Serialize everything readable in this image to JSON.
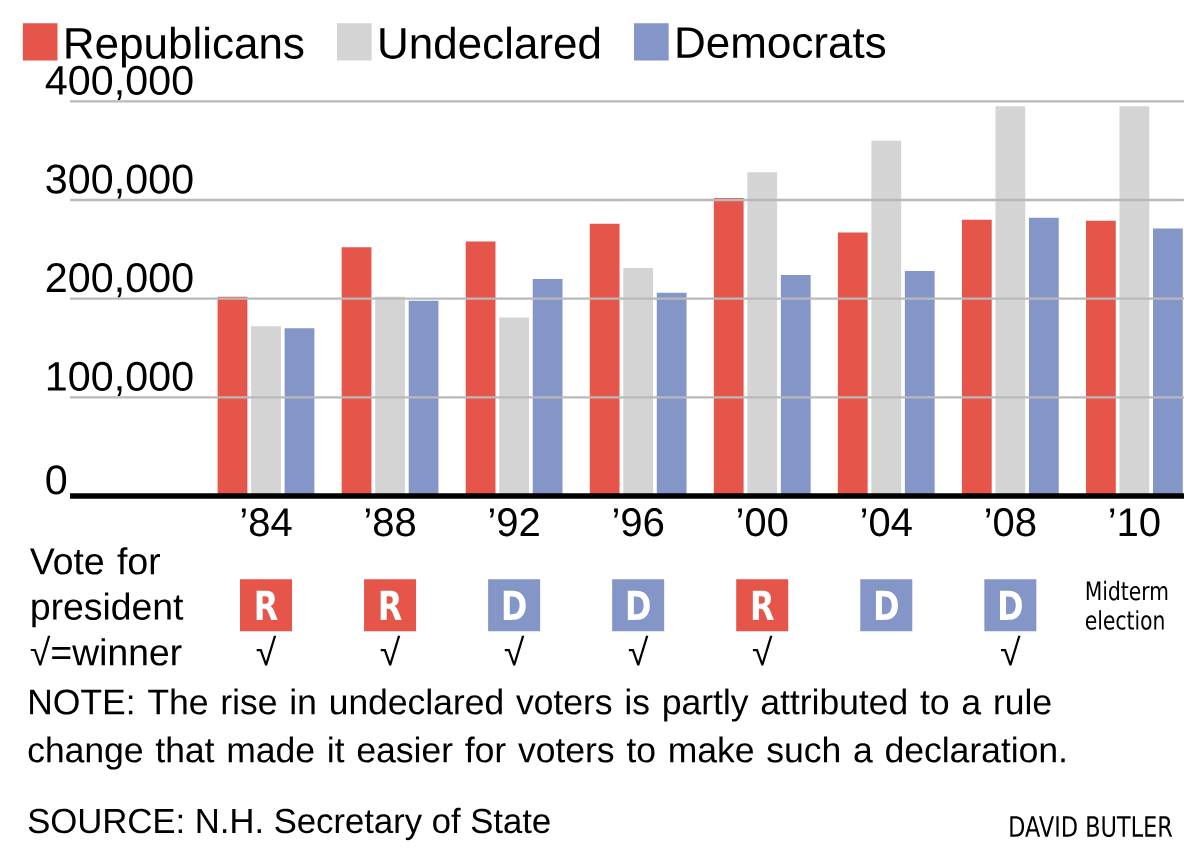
{
  "chart_data": {
    "type": "bar",
    "categories": [
      "’84",
      "’88",
      "’92",
      "’96",
      "’00",
      "’04",
      "’08",
      "’10"
    ],
    "series": [
      {
        "name": "Republicans",
        "color": "#e5554a",
        "values": [
          202000,
          252000,
          258000,
          276000,
          302000,
          267000,
          280000,
          279000
        ]
      },
      {
        "name": "Undeclared",
        "color": "#d4d4d4",
        "values": [
          172000,
          202000,
          181000,
          231000,
          328000,
          360000,
          395000,
          395000
        ]
      },
      {
        "name": "Democrats",
        "color": "#8496c8",
        "values": [
          170000,
          198000,
          220000,
          206000,
          224000,
          228000,
          282000,
          271000
        ]
      }
    ],
    "ylim": [
      0,
      400000
    ],
    "yticks": [
      0,
      {
        "value": 100000,
        "label": "100,000"
      },
      {
        "value": 200000,
        "label": "200,000"
      },
      {
        "value": 300000,
        "label": "300,000"
      },
      {
        "value": 400000,
        "label": "400,000"
      }
    ],
    "grid": "y",
    "legend": "top",
    "annotations": [
      "Vote for president",
      "√=winner",
      "NOTE: The rise in undeclared voters is partly attributed to a rule change that made it easier for voters to make such a declaration.",
      "SOURCE: N.H. Secretary of State",
      "DAVID BUTLER",
      "R",
      "√",
      "R",
      "√",
      "D",
      "√",
      "D",
      "√",
      "R",
      "√",
      "D",
      "D",
      "√",
      "Midterm election"
    ]
  }
}
